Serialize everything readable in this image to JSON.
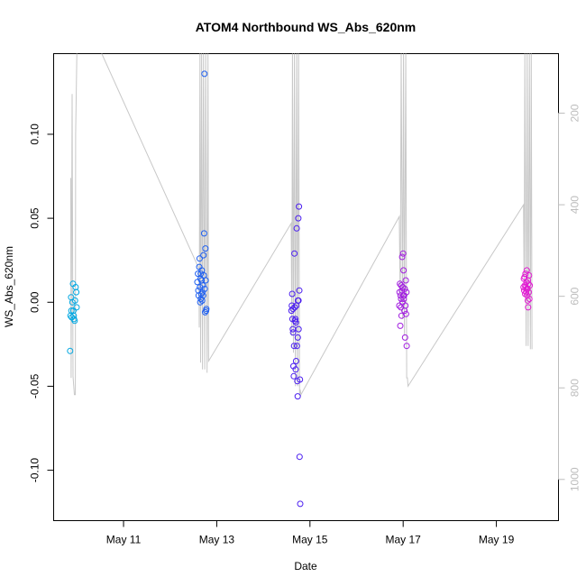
{
  "chart_data": {
    "type": "scatter",
    "title": "ATOM4 Northbound WS_Abs_620nm",
    "xlabel": "Date",
    "ylabel": "WS_Abs_620nm",
    "x_type": "date",
    "xlim": [
      "2017-05-09T12:00",
      "2017-05-20T08:00"
    ],
    "ylim": [
      -0.13,
      0.148
    ],
    "x_ticks": [
      {
        "value": "2017-05-11T00:00",
        "label": "May 11"
      },
      {
        "value": "2017-05-13T00:00",
        "label": "May 13"
      },
      {
        "value": "2017-05-15T00:00",
        "label": "May 15"
      },
      {
        "value": "2017-05-17T00:00",
        "label": "May 17"
      },
      {
        "value": "2017-05-19T00:00",
        "label": "May 19"
      }
    ],
    "y_ticks": [
      -0.1,
      -0.05,
      0.0,
      0.05,
      0.1
    ],
    "y_tick_labels": [
      "-0.10",
      "-0.05",
      "0.00",
      "0.05",
      "0.10"
    ],
    "secondary_axis": {
      "side": "right",
      "reversed": true,
      "lim": [
        70,
        1090
      ],
      "ticks": [
        200,
        400,
        600,
        800,
        1000
      ],
      "tick_labels": [
        "200",
        "400",
        "600",
        "800",
        "1000"
      ],
      "color": "#bdbdbd",
      "series_color": "#c8c8c8",
      "depth_trace": [
        [
          "2017-05-09T20:50",
          0.074
        ],
        [
          "2017-05-09T21:00",
          -0.045
        ],
        [
          "2017-05-09T21:30",
          0.124
        ],
        [
          "2017-05-09T22:00",
          -0.044
        ],
        [
          "2017-05-09T22:40",
          -0.055
        ],
        [
          "2017-05-09T23:10",
          -0.055
        ],
        [
          "2017-05-09T23:20",
          0.1
        ],
        [
          "2017-05-10T00:00",
          0.15
        ],
        [
          "2017-05-10T00:30",
          0.15
        ],
        [
          "2017-05-10T12:00",
          0.15
        ],
        [
          "2017-05-12T14:50",
          0.02
        ],
        [
          "2017-05-12T15:00",
          -0.015
        ],
        [
          "2017-05-12T15:20",
          0.15
        ],
        [
          "2017-05-12T15:40",
          -0.036
        ],
        [
          "2017-05-12T16:10",
          0.15
        ],
        [
          "2017-05-12T16:40",
          -0.04
        ],
        [
          "2017-05-12T17:10",
          0.15
        ],
        [
          "2017-05-12T17:50",
          -0.04
        ],
        [
          "2017-05-12T18:20",
          0.15
        ],
        [
          "2017-05-12T19:00",
          -0.042
        ],
        [
          "2017-05-12T19:30",
          0.148
        ],
        [
          "2017-05-12T19:50",
          -0.035
        ],
        [
          "2017-05-14T14:20",
          0.047
        ],
        [
          "2017-05-14T14:40",
          -0.02
        ],
        [
          "2017-05-14T15:00",
          0.15
        ],
        [
          "2017-05-14T15:30",
          -0.03
        ],
        [
          "2017-05-14T16:00",
          0.15
        ],
        [
          "2017-05-14T16:30",
          -0.05
        ],
        [
          "2017-05-14T17:10",
          0.15
        ],
        [
          "2017-05-14T17:40",
          -0.05
        ],
        [
          "2017-05-14T18:10",
          0.15
        ],
        [
          "2017-05-14T18:40",
          -0.055
        ],
        [
          "2017-05-14T19:00",
          -0.052
        ],
        [
          "2017-05-14T19:20",
          -0.055
        ],
        [
          "2017-05-16T22:00",
          0.051
        ],
        [
          "2017-05-16T22:30",
          -0.002
        ],
        [
          "2017-05-16T23:00",
          0.15
        ],
        [
          "2017-05-16T23:40",
          -0.01
        ],
        [
          "2017-05-17T00:10",
          0.15
        ],
        [
          "2017-05-17T00:40",
          -0.02
        ],
        [
          "2017-05-17T01:20",
          0.15
        ],
        [
          "2017-05-17T01:50",
          -0.045
        ],
        [
          "2017-05-17T02:10",
          -0.045
        ],
        [
          "2017-05-17T02:30",
          -0.05
        ],
        [
          "2017-05-19T14:00",
          0.058
        ],
        [
          "2017-05-19T14:20",
          0.01
        ],
        [
          "2017-05-19T14:40",
          0.15
        ],
        [
          "2017-05-19T15:20",
          -0.026
        ],
        [
          "2017-05-19T15:50",
          0.15
        ],
        [
          "2017-05-19T16:20",
          -0.026
        ],
        [
          "2017-05-19T17:00",
          0.15
        ],
        [
          "2017-05-19T17:30",
          -0.028
        ],
        [
          "2017-05-19T18:00",
          0.15
        ],
        [
          "2017-05-19T18:20",
          -0.028
        ]
      ]
    },
    "series": [
      {
        "color": "#00a7e1",
        "points": [
          [
            "2017-05-09T20:30",
            -0.029
          ],
          [
            "2017-05-09T20:40",
            -0.008
          ],
          [
            "2017-05-09T21:00",
            0.003
          ],
          [
            "2017-05-09T21:10",
            -0.005
          ],
          [
            "2017-05-09T21:20",
            -0.009
          ],
          [
            "2017-05-09T21:40",
            0.0
          ],
          [
            "2017-05-09T22:00",
            0.011
          ],
          [
            "2017-05-09T22:10",
            -0.005
          ],
          [
            "2017-05-09T22:30",
            -0.01
          ],
          [
            "2017-05-09T22:50",
            -0.011
          ],
          [
            "2017-05-09T23:00",
            0.001
          ],
          [
            "2017-05-09T23:20",
            0.009
          ],
          [
            "2017-05-09T23:40",
            0.006
          ],
          [
            "2017-05-09T23:50",
            -0.003
          ],
          [
            "2017-05-09T22:20",
            -0.008
          ]
        ]
      },
      {
        "color": "#1e5ff0",
        "points": [
          [
            "2017-05-12T14:00",
            0.012
          ],
          [
            "2017-05-12T14:20",
            0.017
          ],
          [
            "2017-05-12T14:40",
            0.004
          ],
          [
            "2017-05-12T15:00",
            0.021
          ],
          [
            "2017-05-12T15:10",
            0.026
          ],
          [
            "2017-05-12T15:20",
            0.009
          ],
          [
            "2017-05-12T15:30",
            0.0
          ],
          [
            "2017-05-12T15:40",
            0.014
          ],
          [
            "2017-05-12T15:50",
            0.002
          ],
          [
            "2017-05-12T16:00",
            0.005
          ],
          [
            "2017-05-12T16:10",
            0.013
          ],
          [
            "2017-05-12T16:20",
            0.019
          ],
          [
            "2017-05-12T16:30",
            0.001
          ],
          [
            "2017-05-12T16:40",
            0.006
          ],
          [
            "2017-05-12T16:50",
            0.01
          ],
          [
            "2017-05-12T17:00",
            0.004
          ],
          [
            "2017-05-12T17:10",
            0.028
          ],
          [
            "2017-05-12T17:20",
            0.016
          ],
          [
            "2017-05-12T17:30",
            0.041
          ],
          [
            "2017-05-12T17:40",
            0.136
          ],
          [
            "2017-05-12T17:50",
            0.008
          ],
          [
            "2017-05-12T18:00",
            -0.006
          ],
          [
            "2017-05-12T18:10",
            0.032
          ],
          [
            "2017-05-12T18:20",
            0.013
          ],
          [
            "2017-05-12T18:30",
            -0.005
          ],
          [
            "2017-05-12T18:40",
            -0.004
          ],
          [
            "2017-05-12T15:45",
            0.017
          ],
          [
            "2017-05-12T14:30",
            0.007
          ]
        ]
      },
      {
        "color": "#4b1ef0",
        "points": [
          [
            "2017-05-14T14:30",
            -0.005
          ],
          [
            "2017-05-14T14:40",
            -0.002
          ],
          [
            "2017-05-14T14:50",
            0.005
          ],
          [
            "2017-05-14T15:00",
            -0.01
          ],
          [
            "2017-05-14T15:10",
            -0.016
          ],
          [
            "2017-05-14T15:20",
            -0.018
          ],
          [
            "2017-05-14T15:30",
            -0.038
          ],
          [
            "2017-05-14T15:40",
            -0.044
          ],
          [
            "2017-05-14T15:50",
            -0.026
          ],
          [
            "2017-05-14T16:00",
            0.029
          ],
          [
            "2017-05-14T16:10",
            -0.003
          ],
          [
            "2017-05-14T16:20",
            -0.011
          ],
          [
            "2017-05-14T16:30",
            -0.01
          ],
          [
            "2017-05-14T16:40",
            -0.04
          ],
          [
            "2017-05-14T16:50",
            -0.035
          ],
          [
            "2017-05-14T17:00",
            -0.002
          ],
          [
            "2017-05-14T17:10",
            0.044
          ],
          [
            "2017-05-14T17:20",
            -0.026
          ],
          [
            "2017-05-14T17:30",
            -0.047
          ],
          [
            "2017-05-14T17:40",
            -0.056
          ],
          [
            "2017-05-14T17:50",
            0.001
          ],
          [
            "2017-05-14T18:00",
            0.05
          ],
          [
            "2017-05-14T18:10",
            -0.016
          ],
          [
            "2017-05-14T18:20",
            0.057
          ],
          [
            "2017-05-14T18:30",
            0.007
          ],
          [
            "2017-05-14T18:40",
            -0.092
          ],
          [
            "2017-05-14T18:50",
            -0.046
          ],
          [
            "2017-05-14T19:00",
            -0.12
          ],
          [
            "2017-05-14T16:45",
            -0.012
          ],
          [
            "2017-05-14T15:15",
            -0.004
          ],
          [
            "2017-05-14T17:45",
            -0.021
          ],
          [
            "2017-05-14T18:05",
            0.001
          ]
        ]
      },
      {
        "color": "#a21ee0",
        "points": [
          [
            "2017-05-16T22:00",
            -0.002
          ],
          [
            "2017-05-16T22:10",
            0.006
          ],
          [
            "2017-05-16T22:20",
            0.011
          ],
          [
            "2017-05-16T22:30",
            -0.014
          ],
          [
            "2017-05-16T22:40",
            0.004
          ],
          [
            "2017-05-16T22:50",
            -0.003
          ],
          [
            "2017-05-16T23:00",
            0.01
          ],
          [
            "2017-05-16T23:10",
            -0.008
          ],
          [
            "2017-05-16T23:20",
            0.007
          ],
          [
            "2017-05-16T23:30",
            0.027
          ],
          [
            "2017-05-16T23:40",
            0.0
          ],
          [
            "2017-05-16T23:50",
            0.009
          ],
          [
            "2017-05-17T00:00",
            0.029
          ],
          [
            "2017-05-17T00:10",
            0.019
          ],
          [
            "2017-05-17T00:20",
            0.002
          ],
          [
            "2017-05-17T00:30",
            0.004
          ],
          [
            "2017-05-17T00:40",
            -0.005
          ],
          [
            "2017-05-17T00:50",
            0.008
          ],
          [
            "2017-05-17T01:00",
            -0.021
          ],
          [
            "2017-05-17T01:10",
            -0.002
          ],
          [
            "2017-05-17T01:20",
            0.013
          ],
          [
            "2017-05-17T01:30",
            -0.007
          ],
          [
            "2017-05-17T01:40",
            0.006
          ],
          [
            "2017-05-17T01:50",
            -0.026
          ],
          [
            "2017-05-17T00:05",
            0.004
          ],
          [
            "2017-05-16T22:55",
            0.002
          ]
        ]
      },
      {
        "color": "#e11ed2",
        "points": [
          [
            "2017-05-19T14:00",
            0.009
          ],
          [
            "2017-05-19T14:10",
            0.014
          ],
          [
            "2017-05-19T14:20",
            0.007
          ],
          [
            "2017-05-19T14:30",
            0.015
          ],
          [
            "2017-05-19T14:40",
            0.01
          ],
          [
            "2017-05-19T14:50",
            0.005
          ],
          [
            "2017-05-19T15:00",
            0.017
          ],
          [
            "2017-05-19T15:10",
            0.009
          ],
          [
            "2017-05-19T15:20",
            0.006
          ],
          [
            "2017-05-19T15:30",
            0.012
          ],
          [
            "2017-05-19T15:40",
            0.019
          ],
          [
            "2017-05-19T15:50",
            0.004
          ],
          [
            "2017-05-19T16:00",
            0.008
          ],
          [
            "2017-05-19T16:10",
            0.001
          ],
          [
            "2017-05-19T16:20",
            -0.003
          ],
          [
            "2017-05-19T16:30",
            0.011
          ],
          [
            "2017-05-19T16:40",
            0.006
          ],
          [
            "2017-05-19T16:50",
            0.016
          ],
          [
            "2017-05-19T17:00",
            0.002
          ],
          [
            "2017-05-19T17:10",
            0.01
          ],
          [
            "2017-05-19T15:35",
            0.008
          ],
          [
            "2017-05-19T16:15",
            0.013
          ]
        ]
      }
    ]
  }
}
